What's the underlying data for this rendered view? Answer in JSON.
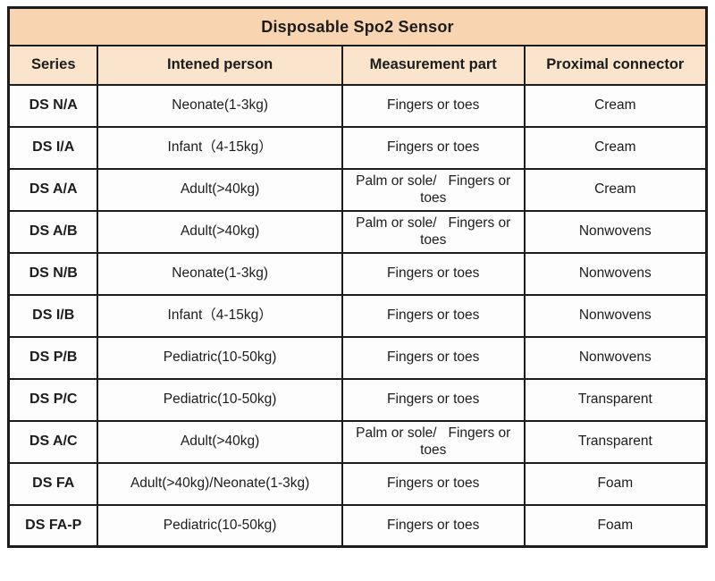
{
  "title": "Disposable Spo2 Sensor",
  "colors": {
    "title_bg": "#f8d5b0",
    "header_bg": "#fbe4cc",
    "border": "#1c1c1c",
    "text": "#1c1c1c",
    "cell_bg": "#fdfdfd"
  },
  "table": {
    "columns": [
      "Series",
      "Intened person",
      "Measurement part",
      "Proximal connector"
    ],
    "rows": [
      {
        "series": "DS N/A",
        "person": "Neonate(1-3kg)",
        "part": "Fingers or toes",
        "connector": "Cream"
      },
      {
        "series": "DS I/A",
        "person": "Infant（4-15kg）",
        "part": "Fingers or toes",
        "connector": "Cream"
      },
      {
        "series": "DS A/A",
        "person": "Adult(>40kg)",
        "part": "Palm or sole/   Fingers or toes",
        "connector": "Cream"
      },
      {
        "series": "DS A/B",
        "person": "Adult(>40kg)",
        "part": "Palm or sole/   Fingers or toes",
        "connector": "Nonwovens"
      },
      {
        "series": "DS N/B",
        "person": "Neonate(1-3kg)",
        "part": "Fingers or toes",
        "connector": "Nonwovens"
      },
      {
        "series": "DS I/B",
        "person": "Infant（4-15kg）",
        "part": "Fingers or toes",
        "connector": "Nonwovens"
      },
      {
        "series": "DS P/B",
        "person": "Pediatric(10-50kg)",
        "part": "Fingers or toes",
        "connector": "Nonwovens"
      },
      {
        "series": "DS P/C",
        "person": "Pediatric(10-50kg)",
        "part": "Fingers or toes",
        "connector": "Transparent"
      },
      {
        "series": "DS A/C",
        "person": "Adult(>40kg)",
        "part": "Palm or sole/   Fingers or toes",
        "connector": "Transparent"
      },
      {
        "series": "DS FA",
        "person": "Adult(>40kg)/Neonate(1-3kg)",
        "part": "Fingers or toes",
        "connector": "Foam"
      },
      {
        "series": "DS FA-P",
        "person": "Pediatric(10-50kg)",
        "part": "Fingers or toes",
        "connector": "Foam"
      }
    ]
  }
}
